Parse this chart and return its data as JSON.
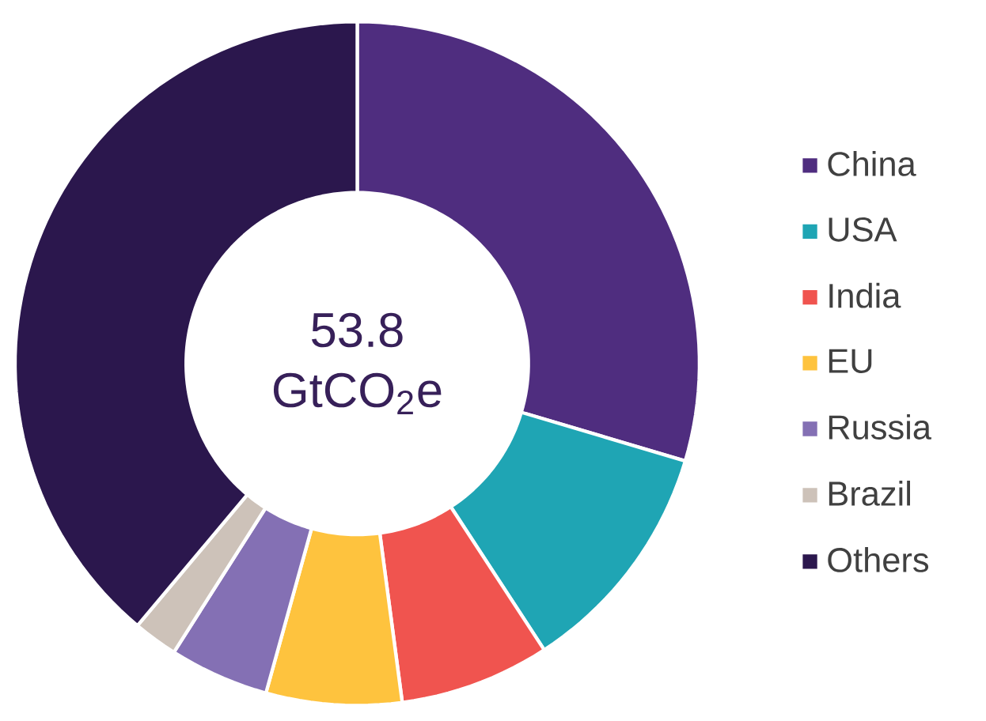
{
  "chart_data": {
    "type": "donut",
    "categories": [
      "China",
      "USA",
      "India",
      "EU",
      "Russia",
      "Brazil",
      "Others"
    ],
    "values": [
      29.6,
      11.2,
      7.1,
      6.4,
      4.7,
      2.1,
      38.9
    ],
    "colors": [
      "#4f2d7f",
      "#1fa5b4",
      "#f0544f",
      "#fec33e",
      "#8470b4",
      "#cdc2b9",
      "#2b174d"
    ],
    "legend": "right",
    "annotations": [
      "53.8 GtCO$_{2}$e"
    ]
  }
}
